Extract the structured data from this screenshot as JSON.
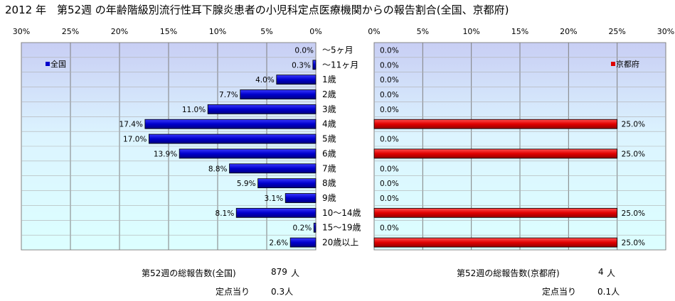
{
  "title": "2012 年　第52週 の年齢階級別流行性耳下腺炎患者の小児科定点医療機関からの報告割合(全国、京都府)",
  "chart_data": [
    {
      "type": "bar",
      "orientation": "horizontal",
      "direction": "right-to-left",
      "categories": [
        "～5ヶ月",
        "～11ヶ月",
        "1歳",
        "2歳",
        "3歳",
        "4歳",
        "5歳",
        "6歳",
        "7歳",
        "8歳",
        "9歳",
        "10～14歳",
        "15～19歳",
        "20歳以上"
      ],
      "series": [
        {
          "name": "全国",
          "values": [
            0.0,
            0.3,
            4.0,
            7.7,
            11.0,
            17.4,
            17.0,
            13.9,
            8.8,
            5.9,
            3.1,
            8.1,
            0.2,
            2.6
          ],
          "color": "#0000cc"
        }
      ],
      "data_labels": [
        "0.0%",
        "0.3%",
        "4.0%",
        "7.7%",
        "11.0%",
        "17.4%",
        "17.0%",
        "13.9%",
        "8.8%",
        "5.9%",
        "3.1%",
        "8.1%",
        "0.2%",
        "2.6%"
      ],
      "xlim": [
        0,
        30
      ],
      "ticks": [
        "30%",
        "25%",
        "20%",
        "15%",
        "10%",
        "5%",
        "0%"
      ],
      "legend": "top-left",
      "grid": true
    },
    {
      "type": "bar",
      "orientation": "horizontal",
      "direction": "left-to-right",
      "categories": [
        "～5ヶ月",
        "～11ヶ月",
        "1歳",
        "2歳",
        "3歳",
        "4歳",
        "5歳",
        "6歳",
        "7歳",
        "8歳",
        "9歳",
        "10～14歳",
        "15～19歳",
        "20歳以上"
      ],
      "series": [
        {
          "name": "京都府",
          "values": [
            0.0,
            0.0,
            0.0,
            0.0,
            0.0,
            25.0,
            0.0,
            25.0,
            0.0,
            0.0,
            0.0,
            25.0,
            0.0,
            25.0
          ],
          "color": "#dd0000"
        }
      ],
      "data_labels": [
        "0.0%",
        "0.0%",
        "0.0%",
        "0.0%",
        "0.0%",
        "25.0%",
        "0.0%",
        "25.0%",
        "0.0%",
        "0.0%",
        "0.0%",
        "25.0%",
        "0.0%",
        "25.0%"
      ],
      "xlim": [
        0,
        30
      ],
      "ticks": [
        "0%",
        "5%",
        "10%",
        "15%",
        "20%",
        "25%",
        "30%"
      ],
      "legend": "top-right",
      "grid": true
    }
  ],
  "footer": {
    "national": {
      "total_label": "第52週の総報告数(全国)",
      "total_value": "879",
      "total_unit": "人",
      "per_label": "定点当り",
      "per_value": "0.3人"
    },
    "kyoto": {
      "total_label": "第52週の総報告数(京都府)",
      "total_value": "4",
      "total_unit": "人",
      "per_label": "定点当り",
      "per_value": "0.1人"
    }
  }
}
